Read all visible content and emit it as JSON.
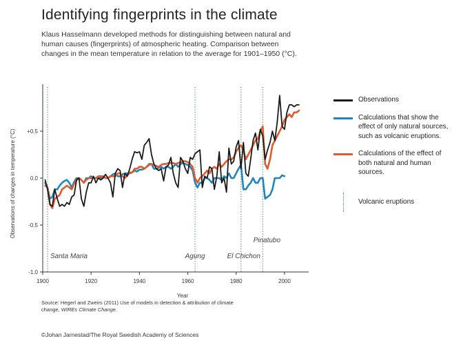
{
  "header": {
    "title": "Identifying fingerprints in the climate",
    "subtitle": "Klaus Hasselmann developed methods for distinguishing between natural and human causes (fingerprints) of atmospheric heating. Comparison between changes in the mean temperature in relation to the average for 1901–1950 (°C)."
  },
  "footer": {
    "source_prefix": "Source: Hegerl and Zweirs (2011) Use of models in detection & attribution of climate change, ",
    "source_journal": "WIREs Climate Change",
    "source_suffix": ".",
    "credit": "©Johan Jarnestad/The Royal Swedish Academy of Sciences"
  },
  "legend": [
    {
      "key": "observations",
      "label": "Observations",
      "color": "#1a1a1a"
    },
    {
      "key": "natural",
      "label": "Calculations that show the effect of only natural sources, such as volcanic eruptions.",
      "color": "#1f84bf"
    },
    {
      "key": "both",
      "label": "Calculations of the effect of both natural and human sources.",
      "color": "#e05a2b"
    },
    {
      "key": "volcanic",
      "label": "Volcanic eruptions",
      "color": "#4a8f7a"
    }
  ],
  "chart_data": {
    "type": "line",
    "xlabel": "Year",
    "ylabel": "Observations of changes in temperature (°C)",
    "xlim": [
      1900,
      2010
    ],
    "ylim": [
      -1.0,
      1.0
    ],
    "xticks": [
      1900,
      1920,
      1940,
      1960,
      1980,
      2000
    ],
    "yticks": [
      {
        "value": 0.5,
        "label": "+0.5"
      },
      {
        "value": 0.0,
        "label": "0.0"
      },
      {
        "value": -0.5,
        "label": "-0.5"
      },
      {
        "value": -1.0,
        "label": "-1.0"
      }
    ],
    "volcanic_eruptions": [
      {
        "name": "Santa Maria",
        "year": 1902
      },
      {
        "name": "Agung",
        "year": 1963
      },
      {
        "name": "El Chichon",
        "year": 1982
      },
      {
        "name": "Pinatubo",
        "year": 1991
      }
    ],
    "series": [
      {
        "key": "observations",
        "color": "#1a1a1a",
        "x": [
          1901,
          1902,
          1903,
          1904,
          1905,
          1906,
          1907,
          1908,
          1909,
          1910,
          1911,
          1912,
          1913,
          1914,
          1915,
          1916,
          1917,
          1918,
          1919,
          1920,
          1921,
          1922,
          1923,
          1924,
          1925,
          1926,
          1927,
          1928,
          1929,
          1930,
          1931,
          1932,
          1933,
          1934,
          1935,
          1936,
          1937,
          1938,
          1939,
          1940,
          1941,
          1942,
          1943,
          1944,
          1945,
          1946,
          1947,
          1948,
          1949,
          1950,
          1951,
          1952,
          1953,
          1954,
          1955,
          1956,
          1957,
          1958,
          1959,
          1960,
          1961,
          1962,
          1963,
          1964,
          1965,
          1966,
          1967,
          1968,
          1969,
          1970,
          1971,
          1972,
          1973,
          1974,
          1975,
          1976,
          1977,
          1978,
          1979,
          1980,
          1981,
          1982,
          1983,
          1984,
          1985,
          1986,
          1987,
          1988,
          1989,
          1990,
          1991,
          1992,
          1993,
          1994,
          1995,
          1996,
          1997,
          1998,
          1999,
          2000,
          2001,
          2002,
          2003,
          2004,
          2005,
          2006
        ],
        "y": [
          -0.02,
          -0.12,
          -0.28,
          -0.3,
          -0.12,
          -0.22,
          -0.3,
          -0.28,
          -0.3,
          -0.26,
          -0.28,
          -0.2,
          -0.18,
          -0.02,
          0.0,
          -0.22,
          -0.3,
          -0.15,
          -0.05,
          -0.05,
          0.02,
          -0.05,
          0.0,
          -0.02,
          0.0,
          0.04,
          0.0,
          -0.05,
          -0.2,
          0.05,
          0.1,
          0.08,
          -0.1,
          0.05,
          0.02,
          0.1,
          0.2,
          0.28,
          0.27,
          0.28,
          0.2,
          0.35,
          0.38,
          0.42,
          0.25,
          0.15,
          0.1,
          0.08,
          0.1,
          -0.03,
          0.12,
          0.14,
          0.22,
          0.05,
          -0.05,
          -0.1,
          0.22,
          0.18,
          0.1,
          0.05,
          0.22,
          0.2,
          0.26,
          0.28,
          0.3,
          -0.1,
          0.02,
          0.0,
          0.12,
          0.1,
          -0.12,
          0.02,
          0.28,
          -0.05,
          0.0,
          -0.15,
          0.32,
          0.15,
          0.18,
          0.33,
          0.4,
          0.1,
          0.38,
          0.05,
          0.02,
          0.2,
          0.4,
          0.48,
          0.3,
          0.52,
          0.45,
          0.2,
          0.3,
          0.38,
          0.5,
          0.4,
          0.6,
          0.88,
          0.55,
          0.52,
          0.7,
          0.78,
          0.78,
          0.76,
          0.78,
          0.78
        ]
      },
      {
        "key": "natural",
        "color": "#1f84bf",
        "x": [
          1901,
          1902,
          1903,
          1904,
          1905,
          1906,
          1907,
          1908,
          1909,
          1910,
          1911,
          1912,
          1913,
          1914,
          1915,
          1916,
          1917,
          1918,
          1919,
          1920,
          1921,
          1922,
          1923,
          1924,
          1925,
          1926,
          1927,
          1928,
          1929,
          1930,
          1931,
          1932,
          1933,
          1934,
          1935,
          1936,
          1937,
          1938,
          1939,
          1940,
          1941,
          1942,
          1943,
          1944,
          1945,
          1946,
          1947,
          1948,
          1949,
          1950,
          1951,
          1952,
          1953,
          1954,
          1955,
          1956,
          1957,
          1958,
          1959,
          1960,
          1961,
          1962,
          1963,
          1964,
          1965,
          1966,
          1967,
          1968,
          1969,
          1970,
          1971,
          1972,
          1973,
          1974,
          1975,
          1976,
          1977,
          1978,
          1979,
          1980,
          1981,
          1982,
          1983,
          1984,
          1985,
          1986,
          1987,
          1988,
          1989,
          1990,
          1991,
          1992,
          1993,
          1994,
          1995,
          1996,
          1997,
          1998,
          1999,
          2000
        ],
        "y": [
          -0.05,
          -0.1,
          -0.22,
          -0.2,
          -0.12,
          -0.12,
          -0.08,
          -0.05,
          -0.03,
          -0.02,
          -0.05,
          -0.1,
          -0.04,
          0.0,
          0.0,
          -0.02,
          -0.05,
          0.0,
          0.0,
          0.02,
          0.0,
          0.0,
          0.0,
          0.0,
          0.02,
          0.0,
          0.0,
          0.02,
          0.04,
          0.05,
          0.02,
          0.02,
          0.04,
          0.05,
          0.05,
          0.05,
          0.06,
          0.08,
          0.07,
          0.09,
          0.09,
          0.1,
          0.12,
          0.15,
          0.15,
          0.1,
          0.1,
          0.11,
          0.12,
          0.1,
          0.12,
          0.12,
          0.1,
          0.12,
          0.15,
          0.12,
          0.15,
          0.16,
          0.15,
          0.14,
          0.12,
          0.08,
          -0.05,
          -0.1,
          -0.05,
          -0.05,
          0.0,
          0.0,
          -0.02,
          -0.05,
          0.0,
          0.0,
          0.0,
          -0.02,
          0.02,
          0.0,
          0.05,
          0.0,
          0.0,
          0.05,
          0.1,
          0.14,
          -0.12,
          -0.12,
          -0.08,
          -0.05,
          0.0,
          -0.05,
          -0.05,
          0.0,
          0.0,
          -0.22,
          -0.2,
          -0.18,
          -0.12,
          0.0,
          0.0,
          0.0,
          0.03,
          0.02
        ]
      },
      {
        "key": "both",
        "color": "#e05a2b",
        "x": [
          1901,
          1902,
          1903,
          1904,
          1905,
          1906,
          1907,
          1908,
          1909,
          1910,
          1911,
          1912,
          1913,
          1914,
          1915,
          1916,
          1917,
          1918,
          1919,
          1920,
          1921,
          1922,
          1923,
          1924,
          1925,
          1926,
          1927,
          1928,
          1929,
          1930,
          1931,
          1932,
          1933,
          1934,
          1935,
          1936,
          1937,
          1938,
          1939,
          1940,
          1941,
          1942,
          1943,
          1944,
          1945,
          1946,
          1947,
          1948,
          1949,
          1950,
          1951,
          1952,
          1953,
          1954,
          1955,
          1956,
          1957,
          1958,
          1959,
          1960,
          1961,
          1962,
          1963,
          1964,
          1965,
          1966,
          1967,
          1968,
          1969,
          1970,
          1971,
          1972,
          1973,
          1974,
          1975,
          1976,
          1977,
          1978,
          1979,
          1980,
          1981,
          1982,
          1983,
          1984,
          1985,
          1986,
          1987,
          1988,
          1989,
          1990,
          1991,
          1992,
          1993,
          1994,
          1995,
          1996,
          1997,
          1998,
          1999,
          2000,
          2001,
          2002,
          2003,
          2004,
          2005,
          2006
        ],
        "y": [
          -0.08,
          -0.1,
          -0.28,
          -0.32,
          -0.22,
          -0.2,
          -0.18,
          -0.12,
          -0.1,
          -0.08,
          -0.1,
          -0.12,
          -0.06,
          -0.02,
          0.0,
          -0.02,
          -0.05,
          -0.02,
          0.0,
          0.0,
          0.0,
          0.0,
          0.02,
          0.02,
          0.02,
          0.0,
          0.0,
          0.02,
          0.02,
          0.02,
          0.05,
          0.05,
          0.02,
          0.0,
          0.03,
          0.06,
          0.06,
          0.1,
          0.1,
          0.12,
          0.12,
          0.1,
          0.12,
          0.14,
          0.15,
          0.14,
          0.13,
          0.12,
          0.14,
          0.15,
          0.15,
          0.16,
          0.16,
          0.16,
          0.15,
          0.16,
          0.17,
          0.18,
          0.18,
          0.17,
          0.15,
          0.12,
          0.0,
          -0.05,
          0.0,
          0.02,
          0.05,
          0.08,
          0.05,
          0.1,
          0.12,
          0.1,
          0.15,
          0.12,
          0.15,
          0.18,
          0.2,
          0.2,
          0.22,
          0.28,
          0.32,
          0.35,
          0.3,
          0.2,
          0.25,
          0.3,
          0.35,
          0.4,
          0.42,
          0.5,
          0.55,
          0.15,
          0.1,
          0.2,
          0.35,
          0.4,
          0.45,
          0.5,
          0.55,
          0.62,
          0.65,
          0.68,
          0.65,
          0.7,
          0.7,
          0.72
        ]
      }
    ]
  }
}
